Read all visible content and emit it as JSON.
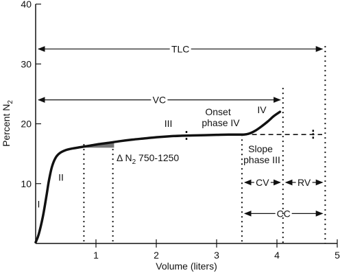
{
  "chart_data": {
    "type": "line",
    "xlabel": "Volume (liters)",
    "ylabel_main": "Percent N",
    "ylabel_sub": "2",
    "xlim": [
      0,
      5
    ],
    "ylim": [
      0,
      40
    ],
    "xticks": [
      1,
      2,
      3,
      4,
      5
    ],
    "yticks": [
      10,
      20,
      30,
      40
    ],
    "series": [
      {
        "x": [
          0.0,
          0.05,
          0.12,
          0.18,
          0.22,
          0.27,
          0.33,
          0.4,
          0.5,
          0.6,
          0.75,
          0.9,
          1.05,
          1.2,
          1.4,
          1.6,
          1.8,
          2.0,
          2.2,
          2.4,
          2.6,
          2.8,
          3.0,
          3.2,
          3.45,
          3.55,
          3.65,
          3.75,
          3.85,
          3.95,
          4.05
        ],
        "y": [
          0.2,
          1.5,
          4.5,
          8.0,
          10.5,
          12.8,
          14.3,
          15.1,
          15.6,
          15.85,
          16.1,
          16.35,
          16.6,
          16.8,
          17.1,
          17.35,
          17.55,
          17.75,
          17.9,
          18.0,
          18.05,
          18.1,
          18.15,
          18.2,
          18.2,
          18.4,
          18.9,
          19.6,
          20.4,
          21.3,
          22.0
        ]
      }
    ],
    "plateau_dashed": {
      "x": [
        3.45,
        4.75
      ],
      "y": [
        18.2,
        18.2
      ]
    },
    "delta_region": {
      "x_start": 0.8,
      "x_end": 1.3,
      "y_base": 16.0,
      "y_top": 16.85
    },
    "error_bars": [
      {
        "x": 2.5,
        "y": 18.0
      },
      {
        "x": 4.6,
        "y": 18.2
      }
    ],
    "vertical_dotted_lines": [
      0.8,
      1.28,
      3.42,
      4.1,
      4.8
    ],
    "phase_labels": [
      {
        "text": "I",
        "x": 0.05,
        "y": 6.0
      },
      {
        "text": "II",
        "x": 0.42,
        "y": 10.5
      },
      {
        "text": "III",
        "x": 2.2,
        "y": 19.5
      },
      {
        "text": "IV",
        "x": 3.75,
        "y": 21.8
      }
    ],
    "spans": [
      {
        "label": "TLC",
        "x1": 0.0,
        "x2": 4.8,
        "y": 32.5
      },
      {
        "label": "VC",
        "x1": 0.0,
        "x2": 4.1,
        "y": 24.0
      },
      {
        "label": "CV",
        "x1": 3.42,
        "x2": 4.1,
        "y": 10.2
      },
      {
        "label": "RV",
        "x1": 4.1,
        "x2": 4.8,
        "y": 10.2
      },
      {
        "label": "CC",
        "x1": 3.42,
        "x2": 4.8,
        "y": 5.0
      }
    ],
    "annotations": {
      "delta_prefix": "Δ N",
      "delta_sub": "2",
      "delta_suffix": " 750-1250",
      "onset_line1": "Onset",
      "onset_line2": "phase IV",
      "slope_line1": "Slope",
      "slope_line2": "phase III"
    }
  }
}
